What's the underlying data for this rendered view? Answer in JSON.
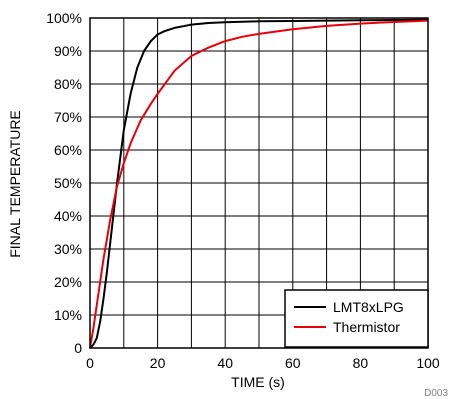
{
  "chart_data": {
    "type": "line",
    "title": "",
    "xlabel": "TIME (s)",
    "ylabel": "FINAL TEMPERATURE",
    "xlim": [
      0,
      100
    ],
    "ylim": [
      0,
      100
    ],
    "x_ticks": [
      0,
      20,
      40,
      60,
      80,
      100
    ],
    "x_tick_labels": [
      "0",
      "20",
      "40",
      "60",
      "80",
      "100"
    ],
    "y_ticks": [
      0,
      10,
      20,
      30,
      40,
      50,
      60,
      70,
      80,
      90,
      100
    ],
    "y_tick_labels": [
      "0",
      "10%",
      "20%",
      "30%",
      "40%",
      "50%",
      "60%",
      "70%",
      "80%",
      "90%",
      "100%"
    ],
    "grid": true,
    "minor_x_gridlines": [
      10,
      30,
      50,
      70,
      90
    ],
    "legend_position": "bottom-right",
    "series": [
      {
        "name": "LMT8xLPG",
        "color": "#000000",
        "x": [
          0,
          1,
          2,
          3,
          4,
          5,
          6,
          7,
          8,
          9,
          10,
          12,
          14,
          16,
          18,
          20,
          22,
          25,
          28,
          30,
          35,
          40,
          50,
          60,
          70,
          80,
          90,
          100
        ],
        "y": [
          0,
          1,
          3,
          8,
          15,
          23,
          32,
          41,
          50,
          58,
          66,
          77,
          85,
          90,
          93,
          95,
          96,
          97,
          97.6,
          98,
          98.5,
          98.7,
          99,
          99.1,
          99.2,
          99.3,
          99.4,
          99.5
        ]
      },
      {
        "name": "Thermistor",
        "color": "#e8000b",
        "x": [
          0,
          1,
          2,
          3,
          4,
          5,
          6,
          7,
          8,
          10,
          12,
          15,
          18,
          20,
          25,
          30,
          35,
          40,
          45,
          50,
          60,
          70,
          80,
          90,
          100
        ],
        "y": [
          0,
          6,
          13,
          20,
          27,
          33,
          39,
          44,
          49,
          56,
          62,
          69,
          74,
          77,
          84,
          88.5,
          91,
          93,
          94.3,
          95.2,
          96.6,
          97.6,
          98.3,
          98.8,
          99.2
        ]
      }
    ],
    "figure_id": "D003"
  }
}
